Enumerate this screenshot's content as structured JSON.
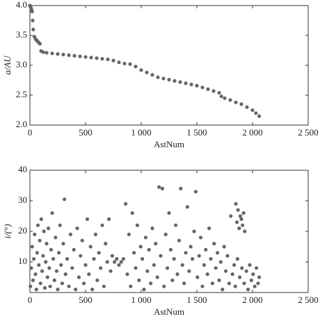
{
  "chart_data": [
    {
      "type": "scatter",
      "y_label": "a/AU",
      "x_label": "AstNum",
      "color": "#666666",
      "xlim": [
        0,
        2500
      ],
      "xticks": [
        0,
        500,
        {
          "value": 1000,
          "label": "1 000"
        },
        {
          "value": 1500,
          "label": "1 500"
        },
        {
          "value": 2000,
          "label": "2 000"
        },
        {
          "value": 2500,
          "label": "2 500"
        }
      ],
      "ylim": [
        2,
        4
      ],
      "yticks": [
        {
          "value": 2,
          "label": "2.0"
        },
        2.5,
        {
          "value": 3,
          "label": "3.0"
        },
        3.5,
        {
          "value": 4,
          "label": "4.0"
        }
      ],
      "x": [
        0,
        5,
        10,
        15,
        20,
        25,
        30,
        40,
        50,
        60,
        70,
        80,
        90,
        100,
        120,
        150,
        200,
        250,
        300,
        350,
        400,
        450,
        500,
        550,
        600,
        650,
        700,
        750,
        800,
        850,
        900,
        950,
        1000,
        1050,
        1100,
        1150,
        1200,
        1250,
        1300,
        1350,
        1400,
        1450,
        1500,
        1550,
        1600,
        1650,
        1700,
        1720,
        1750,
        1800,
        1850,
        1900,
        1950,
        2000,
        2030,
        2060
      ],
      "values": [
        4.0,
        3.98,
        3.96,
        3.93,
        3.9,
        3.75,
        3.6,
        3.48,
        3.44,
        3.42,
        3.4,
        3.38,
        3.36,
        3.24,
        3.22,
        3.21,
        3.2,
        3.19,
        3.18,
        3.17,
        3.16,
        3.15,
        3.14,
        3.13,
        3.12,
        3.11,
        3.1,
        3.08,
        3.05,
        3.03,
        3.02,
        2.98,
        2.92,
        2.88,
        2.84,
        2.8,
        2.78,
        2.76,
        2.74,
        2.72,
        2.7,
        2.68,
        2.66,
        2.63,
        2.6,
        2.57,
        2.54,
        2.48,
        2.45,
        2.42,
        2.38,
        2.35,
        2.3,
        2.25,
        2.2,
        2.15
      ]
    },
    {
      "type": "scatter",
      "y_label": "i/(°)",
      "x_label": "AstNum",
      "color": "#666666",
      "xlim": [
        0,
        2500
      ],
      "xticks": [
        0,
        500,
        {
          "value": 1000,
          "label": "1 000"
        },
        {
          "value": 1500,
          "label": "1 500"
        },
        {
          "value": 2000,
          "label": "2 000"
        },
        {
          "value": 2500,
          "label": "2 500"
        }
      ],
      "ylim": [
        0,
        40
      ],
      "yticks": [
        10,
        20,
        30,
        40
      ],
      "x": [
        5,
        12,
        20,
        28,
        35,
        42,
        50,
        58,
        65,
        72,
        80,
        88,
        95,
        102,
        110,
        118,
        126,
        134,
        142,
        150,
        158,
        166,
        174,
        182,
        190,
        200,
        210,
        220,
        230,
        240,
        250,
        260,
        270,
        280,
        290,
        300,
        310,
        320,
        335,
        350,
        365,
        380,
        395,
        410,
        425,
        440,
        455,
        470,
        485,
        500,
        515,
        530,
        545,
        560,
        575,
        590,
        605,
        620,
        635,
        650,
        665,
        680,
        695,
        710,
        725,
        740,
        760,
        780,
        800,
        820,
        840,
        860,
        875,
        890,
        905,
        920,
        935,
        950,
        965,
        980,
        995,
        1010,
        1025,
        1040,
        1055,
        1070,
        1085,
        1100,
        1115,
        1130,
        1145,
        1160,
        1175,
        1190,
        1205,
        1220,
        1235,
        1250,
        1265,
        1280,
        1295,
        1310,
        1325,
        1340,
        1355,
        1370,
        1385,
        1400,
        1415,
        1430,
        1445,
        1460,
        1475,
        1490,
        1505,
        1520,
        1535,
        1550,
        1565,
        1580,
        1595,
        1610,
        1625,
        1640,
        1655,
        1670,
        1685,
        1700,
        1715,
        1730,
        1745,
        1760,
        1775,
        1790,
        1805,
        1820,
        1835,
        1850,
        1860,
        1870,
        1880,
        1890,
        1900,
        1910,
        1920,
        1930,
        1845,
        1865,
        1885,
        1905,
        1925,
        1945,
        1960,
        1975,
        1990,
        2005,
        2020,
        2035,
        2050,
        2060
      ],
      "values": [
        2,
        8,
        15,
        4,
        11,
        19,
        6,
        1,
        13,
        22,
        9,
        17,
        3,
        24,
        7,
        12,
        20,
        1.5,
        10,
        16,
        5,
        21,
        8,
        2,
        14,
        26,
        11,
        4,
        18,
        7,
        1,
        13,
        22,
        9,
        3,
        16,
        30.5,
        6,
        11,
        2,
        19,
        8,
        14,
        1,
        21,
        5,
        12,
        17,
        3,
        9,
        24,
        6,
        15,
        1,
        11,
        19,
        4,
        13,
        8,
        22,
        2,
        16,
        10,
        24,
        7,
        12,
        10,
        11,
        9,
        10,
        11,
        29,
        6,
        19,
        2,
        26,
        13,
        8,
        22,
        4,
        15,
        11,
        1,
        18,
        7,
        14,
        3,
        21,
        9,
        16,
        5,
        34.5,
        12,
        34,
        2,
        19,
        8,
        26,
        14,
        4,
        11,
        22,
        6,
        17,
        34,
        9,
        3,
        13,
        28,
        7,
        15,
        11,
        20,
        33,
        5,
        12,
        18,
        2,
        9,
        14,
        6,
        21,
        11,
        3,
        16,
        8,
        13,
        4,
        10,
        1,
        15,
        7,
        12,
        3,
        25,
        6,
        9,
        29,
        23,
        27,
        21,
        25,
        24,
        22,
        26,
        20,
        2,
        11,
        5,
        8,
        3,
        7,
        1,
        9,
        4,
        6,
        2,
        8,
        3,
        5
      ]
    }
  ]
}
